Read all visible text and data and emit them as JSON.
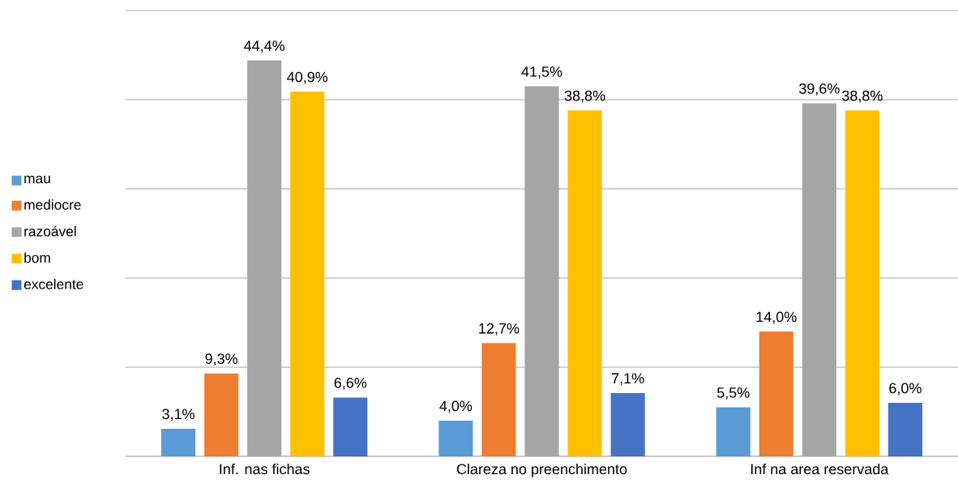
{
  "chart_data": {
    "type": "bar",
    "categories": [
      "Inf. nas fichas",
      "Clareza no preenchimento",
      "Inf na area reservada"
    ],
    "series": [
      {
        "name": "mau",
        "color": "#5b9bd5",
        "values": [
          3.1,
          4.0,
          5.5
        ],
        "value_labels": [
          "3,1%",
          "4,0%",
          "5,5%"
        ]
      },
      {
        "name": "mediocre",
        "color": "#ed7d31",
        "values": [
          9.3,
          12.7,
          14.0
        ],
        "value_labels": [
          "9,3%",
          "12,7%",
          "14,0%"
        ]
      },
      {
        "name": "razoável",
        "color": "#a5a5a5",
        "values": [
          44.4,
          41.5,
          39.6
        ],
        "value_labels": [
          "44,4%",
          "41,5%",
          "39,6%"
        ]
      },
      {
        "name": "bom",
        "color": "#ffc000",
        "values": [
          40.9,
          38.8,
          38.8
        ],
        "value_labels": [
          "40,9%",
          "38,8%",
          "38,8%"
        ]
      },
      {
        "name": "excelente",
        "color": "#4472c4",
        "values": [
          6.6,
          7.1,
          6.0
        ],
        "value_labels": [
          "6,6%",
          "7,1%",
          "6,0%"
        ]
      }
    ],
    "ylim": [
      0,
      50
    ],
    "tick_labels": "x",
    "grid": "y",
    "legend": "left"
  }
}
